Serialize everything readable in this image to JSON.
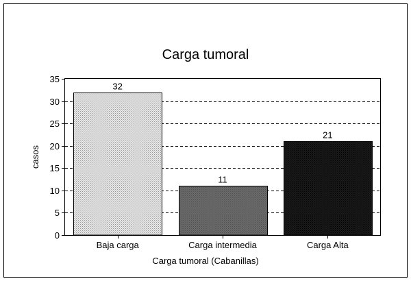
{
  "chart_data": {
    "type": "bar",
    "title": "Carga tumoral",
    "xlabel": "Carga tumoral (Cabanillas)",
    "ylabel": "casos",
    "categories": [
      "Baja carga",
      "Carga intermedia",
      "Carga Alta"
    ],
    "values": [
      32,
      11,
      21
    ],
    "value_labels": [
      "32",
      "11",
      "21"
    ],
    "ylim": [
      0,
      35
    ],
    "yticks": [
      0,
      5,
      10,
      15,
      20,
      25,
      30,
      35
    ],
    "ytick_labels": [
      "0",
      "5",
      "10",
      "15",
      "20",
      "25",
      "30",
      "35"
    ],
    "grid": "horizontal dashed",
    "bar_colors": [
      "#d9d9d9",
      "#616161",
      "#111111"
    ]
  }
}
